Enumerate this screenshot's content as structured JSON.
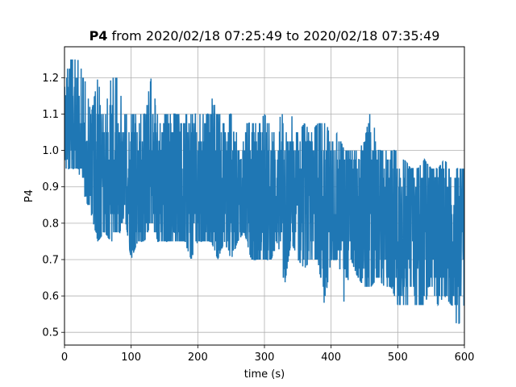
{
  "chart_data": {
    "type": "line",
    "title": {
      "bold": "P4",
      "rest": " from 2020/02/18 07:25:49 to 2020/02/18 07:35:49"
    },
    "xlabel": "time (s)",
    "ylabel": "P4",
    "xlim": [
      0,
      600
    ],
    "ylim": [
      0.465,
      1.285
    ],
    "xticks": [
      0,
      100,
      200,
      300,
      400,
      500,
      600
    ],
    "xtick_labels": [
      "0",
      "100",
      "200",
      "300",
      "400",
      "500",
      "600"
    ],
    "yticks": [
      0.5,
      0.6,
      0.7,
      0.8,
      0.9,
      1.0,
      1.1,
      1.2
    ],
    "ytick_labels": [
      "0.5",
      "0.6",
      "0.7",
      "0.8",
      "0.9",
      "1.0",
      "1.1",
      "1.2"
    ],
    "grid": true,
    "series": [
      {
        "color": "#1f77b4",
        "x": [
          0,
          10,
          20,
          30,
          40,
          50,
          60,
          70,
          80,
          90,
          100,
          110,
          120,
          130,
          140,
          150,
          160,
          170,
          180,
          190,
          200,
          210,
          220,
          230,
          240,
          250,
          260,
          270,
          280,
          290,
          300,
          310,
          320,
          330,
          340,
          350,
          360,
          370,
          380,
          390,
          400,
          410,
          420,
          430,
          440,
          450,
          460,
          470,
          480,
          490,
          500,
          510,
          520,
          530,
          540,
          550,
          560,
          570,
          580,
          590,
          600
        ],
        "ymin": [
          0.95,
          0.95,
          0.95,
          0.875,
          0.825,
          0.75,
          0.775,
          0.75,
          0.75,
          0.825,
          0.7,
          0.75,
          0.75,
          0.8,
          0.75,
          0.75,
          0.75,
          0.75,
          0.75,
          0.7,
          0.75,
          0.75,
          0.75,
          0.7,
          0.75,
          0.7,
          0.75,
          0.775,
          0.7,
          0.7,
          0.7,
          0.7,
          0.75,
          0.625,
          0.75,
          0.7,
          0.675,
          0.7,
          0.7,
          0.575,
          0.7,
          0.7,
          0.575,
          0.7,
          0.65,
          0.625,
          0.625,
          0.65,
          0.625,
          0.625,
          0.575,
          0.575,
          0.575,
          0.575,
          0.575,
          0.625,
          0.575,
          0.6,
          0.575,
          0.5,
          0.575
        ],
        "ymax": [
          1.25,
          1.25,
          1.25,
          1.2,
          1.1,
          1.2,
          1.1,
          1.2,
          1.2,
          1.1,
          1.1,
          1.1,
          1.1,
          1.2,
          1.1,
          1.1,
          1.1,
          1.1,
          1.1,
          1.1,
          1.1,
          1.1,
          1.15,
          1.1,
          1.1,
          1.1,
          1.1,
          1.075,
          1.075,
          1.075,
          1.1,
          1.075,
          1.075,
          1.125,
          1.1,
          1.05,
          1.075,
          1.05,
          1.075,
          1.1,
          1.025,
          1.05,
          1.0,
          1.0,
          1.0,
          1.025,
          1.125,
          1.0,
          1.0,
          1.0,
          1.0,
          0.975,
          0.95,
          0.95,
          0.975,
          0.95,
          0.95,
          0.975,
          0.95,
          0.95,
          0.95
        ],
        "ymid": [
          1.05,
          1.1,
          1.05,
          0.95,
          0.95,
          0.95,
          0.925,
          0.95,
          0.9,
          0.925,
          0.9,
          0.9,
          0.925,
          0.95,
          0.9,
          0.925,
          0.9,
          0.9,
          0.9,
          0.9,
          0.9,
          0.9,
          0.925,
          0.9,
          0.9,
          0.875,
          0.875,
          0.9,
          0.875,
          0.875,
          0.875,
          0.875,
          0.875,
          0.85,
          0.875,
          0.85,
          0.85,
          0.85,
          0.85,
          0.85,
          0.85,
          0.85,
          0.825,
          0.825,
          0.825,
          0.825,
          0.825,
          0.825,
          0.8,
          0.8,
          0.8,
          0.8,
          0.8,
          0.775,
          0.775,
          0.8,
          0.775,
          0.775,
          0.775,
          0.775,
          0.775
        ]
      }
    ]
  }
}
